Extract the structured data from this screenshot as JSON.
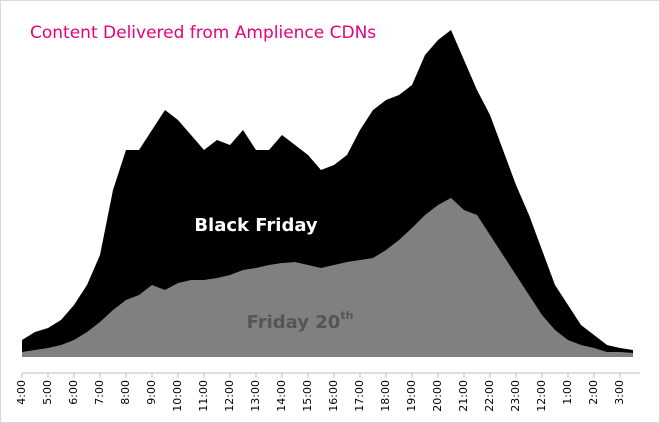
{
  "chart_data": {
    "type": "area",
    "title": "Content Delivered from Amplience CDNs",
    "categories": [
      "4:00",
      null,
      "5:00",
      null,
      "6:00",
      null,
      "7:00",
      null,
      "8:00",
      null,
      "9:00",
      null,
      "10:00",
      null,
      "11:00",
      null,
      "12:00",
      null,
      "13:00",
      null,
      "14:00",
      null,
      "15:00",
      null,
      "16:00",
      null,
      "17:00",
      null,
      "18:00",
      null,
      "19:00",
      null,
      "20:00",
      null,
      "21:00",
      null,
      "22:00",
      null,
      "23:00",
      null,
      "12:00",
      null,
      "1:00",
      null,
      "2:00",
      null,
      "3:00",
      null
    ],
    "series": [
      {
        "name": "Black Friday",
        "color": "#000000",
        "label_color": "#ffffff",
        "values": [
          17,
          25,
          29,
          37,
          52,
          72,
          102,
          167,
          207,
          207,
          227,
          247,
          237,
          222,
          207,
          217,
          212,
          227,
          207,
          207,
          222,
          212,
          202,
          187,
          192,
          202,
          227,
          247,
          257,
          262,
          272,
          302,
          317,
          327,
          297,
          267,
          242,
          207,
          172,
          142,
          107,
          72,
          52,
          32,
          22,
          12,
          9,
          7
        ]
      },
      {
        "name": "Friday 20",
        "name_sup": "th",
        "color": "#808080",
        "label_color": "#555555",
        "values": [
          5,
          7,
          9,
          12,
          17,
          25,
          35,
          47,
          57,
          62,
          72,
          67,
          74,
          77,
          77,
          79,
          82,
          87,
          89,
          92,
          94,
          95,
          92,
          89,
          92,
          95,
          97,
          99,
          107,
          117,
          129,
          142,
          152,
          159,
          147,
          142,
          122,
          102,
          82,
          62,
          42,
          27,
          17,
          12,
          9,
          5,
          5,
          4
        ]
      }
    ],
    "ylim": [
      0,
      340
    ],
    "title_color": "#e6007e"
  }
}
